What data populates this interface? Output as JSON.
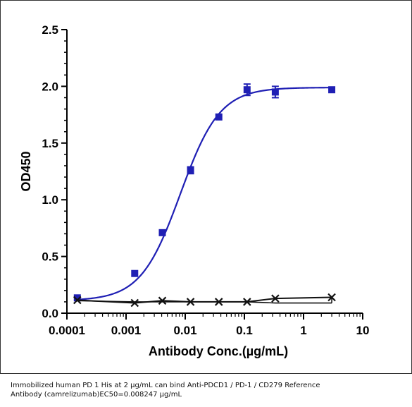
{
  "chart_data": {
    "type": "scatter",
    "xlabel": "Antibody Conc.(µg/mL)",
    "ylabel": "OD450",
    "xscale": "log",
    "xlim": [
      0.0001,
      10
    ],
    "ylim": [
      0,
      2.5
    ],
    "x_ticks": [
      0.0001,
      0.001,
      0.01,
      0.1,
      1,
      10
    ],
    "x_tick_labels": [
      "0.0001",
      "0.001",
      "0.01",
      "0.1",
      "1",
      "10"
    ],
    "y_ticks": [
      0,
      0.5,
      1.0,
      1.5,
      2.0,
      2.5
    ],
    "y_tick_labels": [
      "0.0",
      "0.5",
      "1.0",
      "1.5",
      "2.0",
      "2.5"
    ],
    "grid": false,
    "series": [
      {
        "marker": "square",
        "color": "#1f1fb4",
        "x": [
          0.00015,
          0.0014,
          0.0041,
          0.0123,
          0.037,
          0.111,
          0.333,
          3.0
        ],
        "y": [
          0.135,
          0.35,
          0.71,
          1.26,
          1.73,
          1.97,
          1.95,
          1.97
        ],
        "err": [
          0.01,
          0.01,
          0.01,
          0.03,
          0.01,
          0.05,
          0.05,
          0.01
        ],
        "fit": {
          "model": "4PL",
          "bottom": 0.11,
          "top": 1.99,
          "ec50": 0.008247,
          "hill": 1.3,
          "color": "#1f1fb4"
        }
      },
      {
        "marker": "x",
        "color": "#111111",
        "x": [
          0.00015,
          0.0014,
          0.0041,
          0.0123,
          0.037,
          0.111,
          0.333,
          3.0
        ],
        "y": [
          0.115,
          0.09,
          0.11,
          0.1,
          0.1,
          0.1,
          0.13,
          0.14
        ],
        "lower_y": [
          0.11,
          0.1,
          0.1,
          0.1,
          0.1,
          0.1,
          0.09,
          0.09
        ]
      }
    ]
  },
  "caption": {
    "line1": "Immobilized human PD 1 His at 2  μg/mL can bind  Anti-PDCD1 / PD-1 / CD279 Reference",
    "line2": "Antibody (camrelizumab)\u001dEC50=0.008247 μg/mL"
  }
}
